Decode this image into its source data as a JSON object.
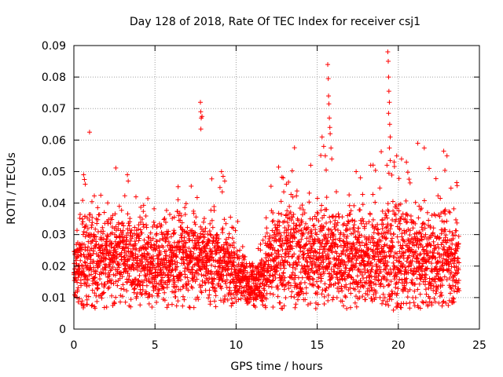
{
  "chart_data": {
    "type": "scatter",
    "title": "Day 128 of 2018, Rate Of TEC Index for receiver csj1",
    "xlabel": "GPS time / hours",
    "ylabel": "ROTI / TECUs",
    "xlim": [
      0,
      25
    ],
    "ylim": [
      0,
      0.09
    ],
    "x_ticks": [
      0,
      5,
      10,
      15,
      20,
      25
    ],
    "y_ticks": [
      0,
      0.01,
      0.02,
      0.03,
      0.04,
      0.05,
      0.06,
      0.07,
      0.08,
      0.09
    ],
    "x_tick_labels": [
      "0",
      "5",
      "10",
      "15",
      "20",
      "25"
    ],
    "y_tick_labels": [
      "0",
      "0.01",
      "0.02",
      "0.03",
      "0.04",
      "0.05",
      "0.06",
      "0.07",
      "0.08",
      "0.09"
    ],
    "grid": true,
    "marker": "+",
    "marker_color": "#ff0000",
    "series": [
      {
        "name": "ROTI",
        "profile": {
          "hour": [
            0,
            0.5,
            1,
            2,
            3,
            3.5,
            4,
            5,
            6,
            7,
            8,
            9,
            10,
            11,
            11.5,
            12,
            13,
            14,
            15,
            16,
            17,
            18,
            19,
            20,
            21,
            22,
            23,
            23.7
          ],
          "center": [
            0.017,
            0.021,
            0.022,
            0.022,
            0.024,
            0.021,
            0.02,
            0.021,
            0.021,
            0.023,
            0.023,
            0.022,
            0.017,
            0.014,
            0.015,
            0.021,
            0.024,
            0.024,
            0.023,
            0.024,
            0.023,
            0.022,
            0.023,
            0.023,
            0.022,
            0.021,
            0.022,
            0.02
          ],
          "spread": [
            0.006,
            0.009,
            0.009,
            0.008,
            0.009,
            0.008,
            0.008,
            0.008,
            0.008,
            0.008,
            0.008,
            0.008,
            0.005,
            0.004,
            0.005,
            0.009,
            0.01,
            0.009,
            0.009,
            0.01,
            0.009,
            0.009,
            0.01,
            0.01,
            0.009,
            0.009,
            0.009,
            0.008
          ]
        },
        "samples_per_hour": 150,
        "t_end": 23.75,
        "spikes": [
          {
            "x": 0.6,
            "y": 0.049
          },
          {
            "x": 0.65,
            "y": 0.0475
          },
          {
            "x": 0.7,
            "y": 0.046
          },
          {
            "x": 3.3,
            "y": 0.049
          },
          {
            "x": 3.35,
            "y": 0.047
          },
          {
            "x": 7.8,
            "y": 0.072
          },
          {
            "x": 7.82,
            "y": 0.069
          },
          {
            "x": 7.85,
            "y": 0.067
          },
          {
            "x": 7.83,
            "y": 0.0635
          },
          {
            "x": 7.9,
            "y": 0.0675
          },
          {
            "x": 9.1,
            "y": 0.05
          },
          {
            "x": 9.2,
            "y": 0.0485
          },
          {
            "x": 9.3,
            "y": 0.047
          },
          {
            "x": 12.9,
            "y": 0.048
          },
          {
            "x": 13.1,
            "y": 0.046
          },
          {
            "x": 15.3,
            "y": 0.061
          },
          {
            "x": 15.4,
            "y": 0.058
          },
          {
            "x": 15.5,
            "y": 0.055
          },
          {
            "x": 15.55,
            "y": 0.0505
          },
          {
            "x": 15.65,
            "y": 0.084
          },
          {
            "x": 15.68,
            "y": 0.0795
          },
          {
            "x": 15.7,
            "y": 0.074
          },
          {
            "x": 15.72,
            "y": 0.0715
          },
          {
            "x": 15.75,
            "y": 0.067
          },
          {
            "x": 15.78,
            "y": 0.064
          },
          {
            "x": 15.8,
            "y": 0.062
          },
          {
            "x": 15.85,
            "y": 0.0575
          },
          {
            "x": 15.9,
            "y": 0.054
          },
          {
            "x": 14.6,
            "y": 0.052
          },
          {
            "x": 17.4,
            "y": 0.05
          },
          {
            "x": 18.3,
            "y": 0.052
          },
          {
            "x": 19.35,
            "y": 0.088
          },
          {
            "x": 19.38,
            "y": 0.085
          },
          {
            "x": 19.4,
            "y": 0.08
          },
          {
            "x": 19.42,
            "y": 0.0755
          },
          {
            "x": 19.45,
            "y": 0.072
          },
          {
            "x": 19.4,
            "y": 0.0685
          },
          {
            "x": 19.47,
            "y": 0.065
          },
          {
            "x": 19.5,
            "y": 0.061
          },
          {
            "x": 19.45,
            "y": 0.0575
          },
          {
            "x": 19.5,
            "y": 0.0535
          },
          {
            "x": 19.3,
            "y": 0.052
          },
          {
            "x": 19.9,
            "y": 0.055
          },
          {
            "x": 20.2,
            "y": 0.054
          },
          {
            "x": 20.5,
            "y": 0.053
          },
          {
            "x": 21.2,
            "y": 0.059
          },
          {
            "x": 21.6,
            "y": 0.0575
          },
          {
            "x": 21.9,
            "y": 0.051
          },
          {
            "x": 22.8,
            "y": 0.0565
          },
          {
            "x": 23.0,
            "y": 0.055
          },
          {
            "x": 23.6,
            "y": 0.0465
          },
          {
            "x": 19.7,
            "y": 0.006
          }
        ]
      }
    ]
  }
}
